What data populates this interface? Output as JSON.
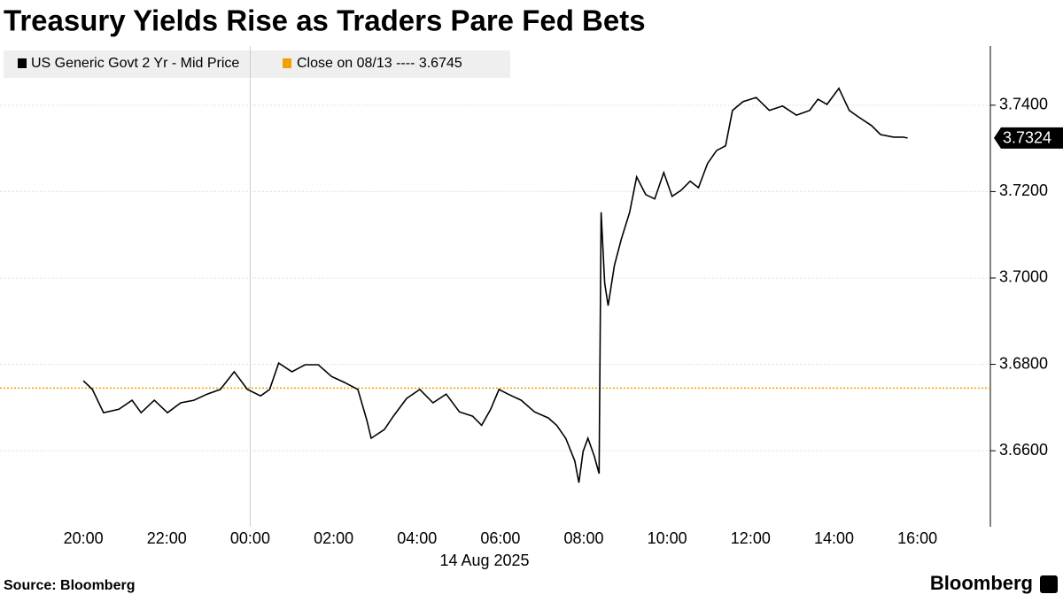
{
  "chart_data": {
    "type": "line",
    "title": "Treasury Yields Rise as Traders Pare Fed Bets",
    "date_label": "14 Aug 2025",
    "source": "Source: Bloomberg",
    "brand": "Bloomberg",
    "x": [
      "20:00",
      "20:13",
      "20:29",
      "20:51",
      "21:10",
      "21:23",
      "21:42",
      "22:01",
      "22:20",
      "22:39",
      "22:58",
      "23:17",
      "23:37",
      "23:56",
      "00:15",
      "00:28",
      "00:41",
      "01:00",
      "01:19",
      "01:38",
      "01:57",
      "02:16",
      "02:35",
      "02:48",
      "02:54",
      "03:13",
      "03:26",
      "03:45",
      "04:04",
      "04:23",
      "04:42",
      "05:01",
      "05:20",
      "05:33",
      "05:46",
      "05:58",
      "06:11",
      "06:30",
      "06:49",
      "07:09",
      "07:21",
      "07:34",
      "07:47",
      "07:53",
      "07:59",
      "08:06",
      "08:15",
      "08:22",
      "08:25",
      "08:30",
      "08:35",
      "08:44",
      "08:54",
      "09:06",
      "09:16",
      "09:29",
      "09:42",
      "09:55",
      "10:07",
      "10:20",
      "10:33",
      "10:45",
      "10:58",
      "11:11",
      "11:24",
      "11:34",
      "11:49",
      "12:08",
      "12:27",
      "12:46",
      "13:06",
      "13:25",
      "13:37",
      "13:50",
      "14:07",
      "14:22",
      "14:35",
      "14:54",
      "15:07",
      "15:26",
      "15:39",
      "15:46"
    ],
    "series": [
      {
        "name": "US Generic Govt 2 Yr - Mid Price",
        "color": "#000000",
        "values": [
          3.6762,
          3.6742,
          3.6688,
          3.6696,
          3.6717,
          3.6688,
          3.6717,
          3.6688,
          3.6711,
          3.6717,
          3.6731,
          3.6742,
          3.6783,
          3.6742,
          3.6727,
          3.6742,
          3.6803,
          3.6783,
          3.6799,
          3.6799,
          3.6772,
          3.6758,
          3.6742,
          3.667,
          3.6629,
          3.6649,
          3.668,
          3.6721,
          3.6742,
          3.6711,
          3.6731,
          3.669,
          3.668,
          3.6659,
          3.6696,
          3.6742,
          3.6731,
          3.6717,
          3.669,
          3.6676,
          3.6659,
          3.6629,
          3.6577,
          3.6526,
          3.6598,
          3.6629,
          3.6588,
          3.6547,
          3.7152,
          3.6988,
          3.6936,
          3.7029,
          3.709,
          3.7152,
          3.7234,
          3.7193,
          3.7183,
          3.7244,
          3.7189,
          3.7203,
          3.7224,
          3.7209,
          3.7265,
          3.7295,
          3.7306,
          3.7388,
          3.7408,
          3.7418,
          3.7388,
          3.7398,
          3.7377,
          3.7388,
          3.7414,
          3.7402,
          3.7439,
          3.7388,
          3.7373,
          3.7353,
          3.7332,
          3.7326,
          3.7326,
          3.7324
        ]
      }
    ],
    "last_label": "3.7324",
    "reference": {
      "name": "Close on 08/13 ---- 3.6745",
      "value": 3.6745,
      "color": "#f0a000"
    },
    "xlim": [
      "18:00",
      "17:45"
    ],
    "xticks": [
      "20:00",
      "22:00",
      "00:00",
      "02:00",
      "04:00",
      "06:00",
      "08:00",
      "10:00",
      "12:00",
      "14:00",
      "16:00"
    ],
    "ylim": [
      3.6424,
      3.7537
    ],
    "yticks": [
      {
        "value": 3.66,
        "label": "3.6600"
      },
      {
        "value": 3.68,
        "label": "3.6800"
      },
      {
        "value": 3.7,
        "label": "3.7000"
      },
      {
        "value": 3.72,
        "label": "3.7200"
      },
      {
        "value": 3.74,
        "label": "3.7400"
      }
    ],
    "grid": true
  }
}
